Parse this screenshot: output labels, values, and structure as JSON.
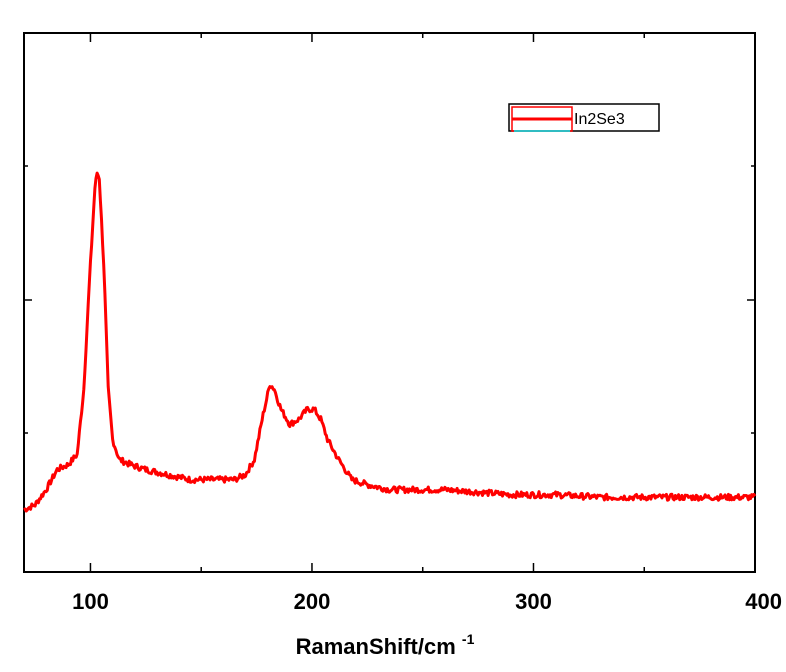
{
  "chart_data": {
    "type": "line",
    "xlabel": "RamanShift/cm",
    "xlabel_superscript": "-1",
    "ylabel": "",
    "xlim": [
      70,
      400
    ],
    "ylim": [
      0,
      1
    ],
    "x_ticks": [
      100,
      200,
      300,
      400
    ],
    "x_tick_labels": [
      "100",
      "200",
      "300",
      "400"
    ],
    "y_ticks_labeled": false,
    "grid": false,
    "legend_position": "top-right",
    "series": [
      {
        "name": "In2Se3",
        "color": "#ff0000",
        "points": [
          [
            70,
            0.06
          ],
          [
            75,
            0.07
          ],
          [
            80,
            0.1
          ],
          [
            85,
            0.14
          ],
          [
            90,
            0.15
          ],
          [
            94,
            0.17
          ],
          [
            97,
            0.3
          ],
          [
            100,
            0.55
          ],
          [
            102,
            0.7
          ],
          [
            103,
            0.73
          ],
          [
            104,
            0.72
          ],
          [
            106,
            0.55
          ],
          [
            108,
            0.3
          ],
          [
            110,
            0.2
          ],
          [
            113,
            0.16
          ],
          [
            118,
            0.15
          ],
          [
            125,
            0.14
          ],
          [
            135,
            0.13
          ],
          [
            145,
            0.12
          ],
          [
            155,
            0.12
          ],
          [
            165,
            0.12
          ],
          [
            170,
            0.13
          ],
          [
            174,
            0.16
          ],
          [
            178,
            0.25
          ],
          [
            181,
            0.31
          ],
          [
            183,
            0.3
          ],
          [
            186,
            0.26
          ],
          [
            190,
            0.23
          ],
          [
            194,
            0.24
          ],
          [
            198,
            0.26
          ],
          [
            201,
            0.26
          ],
          [
            204,
            0.24
          ],
          [
            207,
            0.2
          ],
          [
            212,
            0.16
          ],
          [
            218,
            0.12
          ],
          [
            225,
            0.11
          ],
          [
            235,
            0.1
          ],
          [
            250,
            0.1
          ],
          [
            260,
            0.1
          ],
          [
            275,
            0.095
          ],
          [
            290,
            0.09
          ],
          [
            310,
            0.09
          ],
          [
            330,
            0.085
          ],
          [
            350,
            0.085
          ],
          [
            370,
            0.085
          ],
          [
            385,
            0.085
          ],
          [
            400,
            0.085
          ]
        ]
      }
    ]
  }
}
